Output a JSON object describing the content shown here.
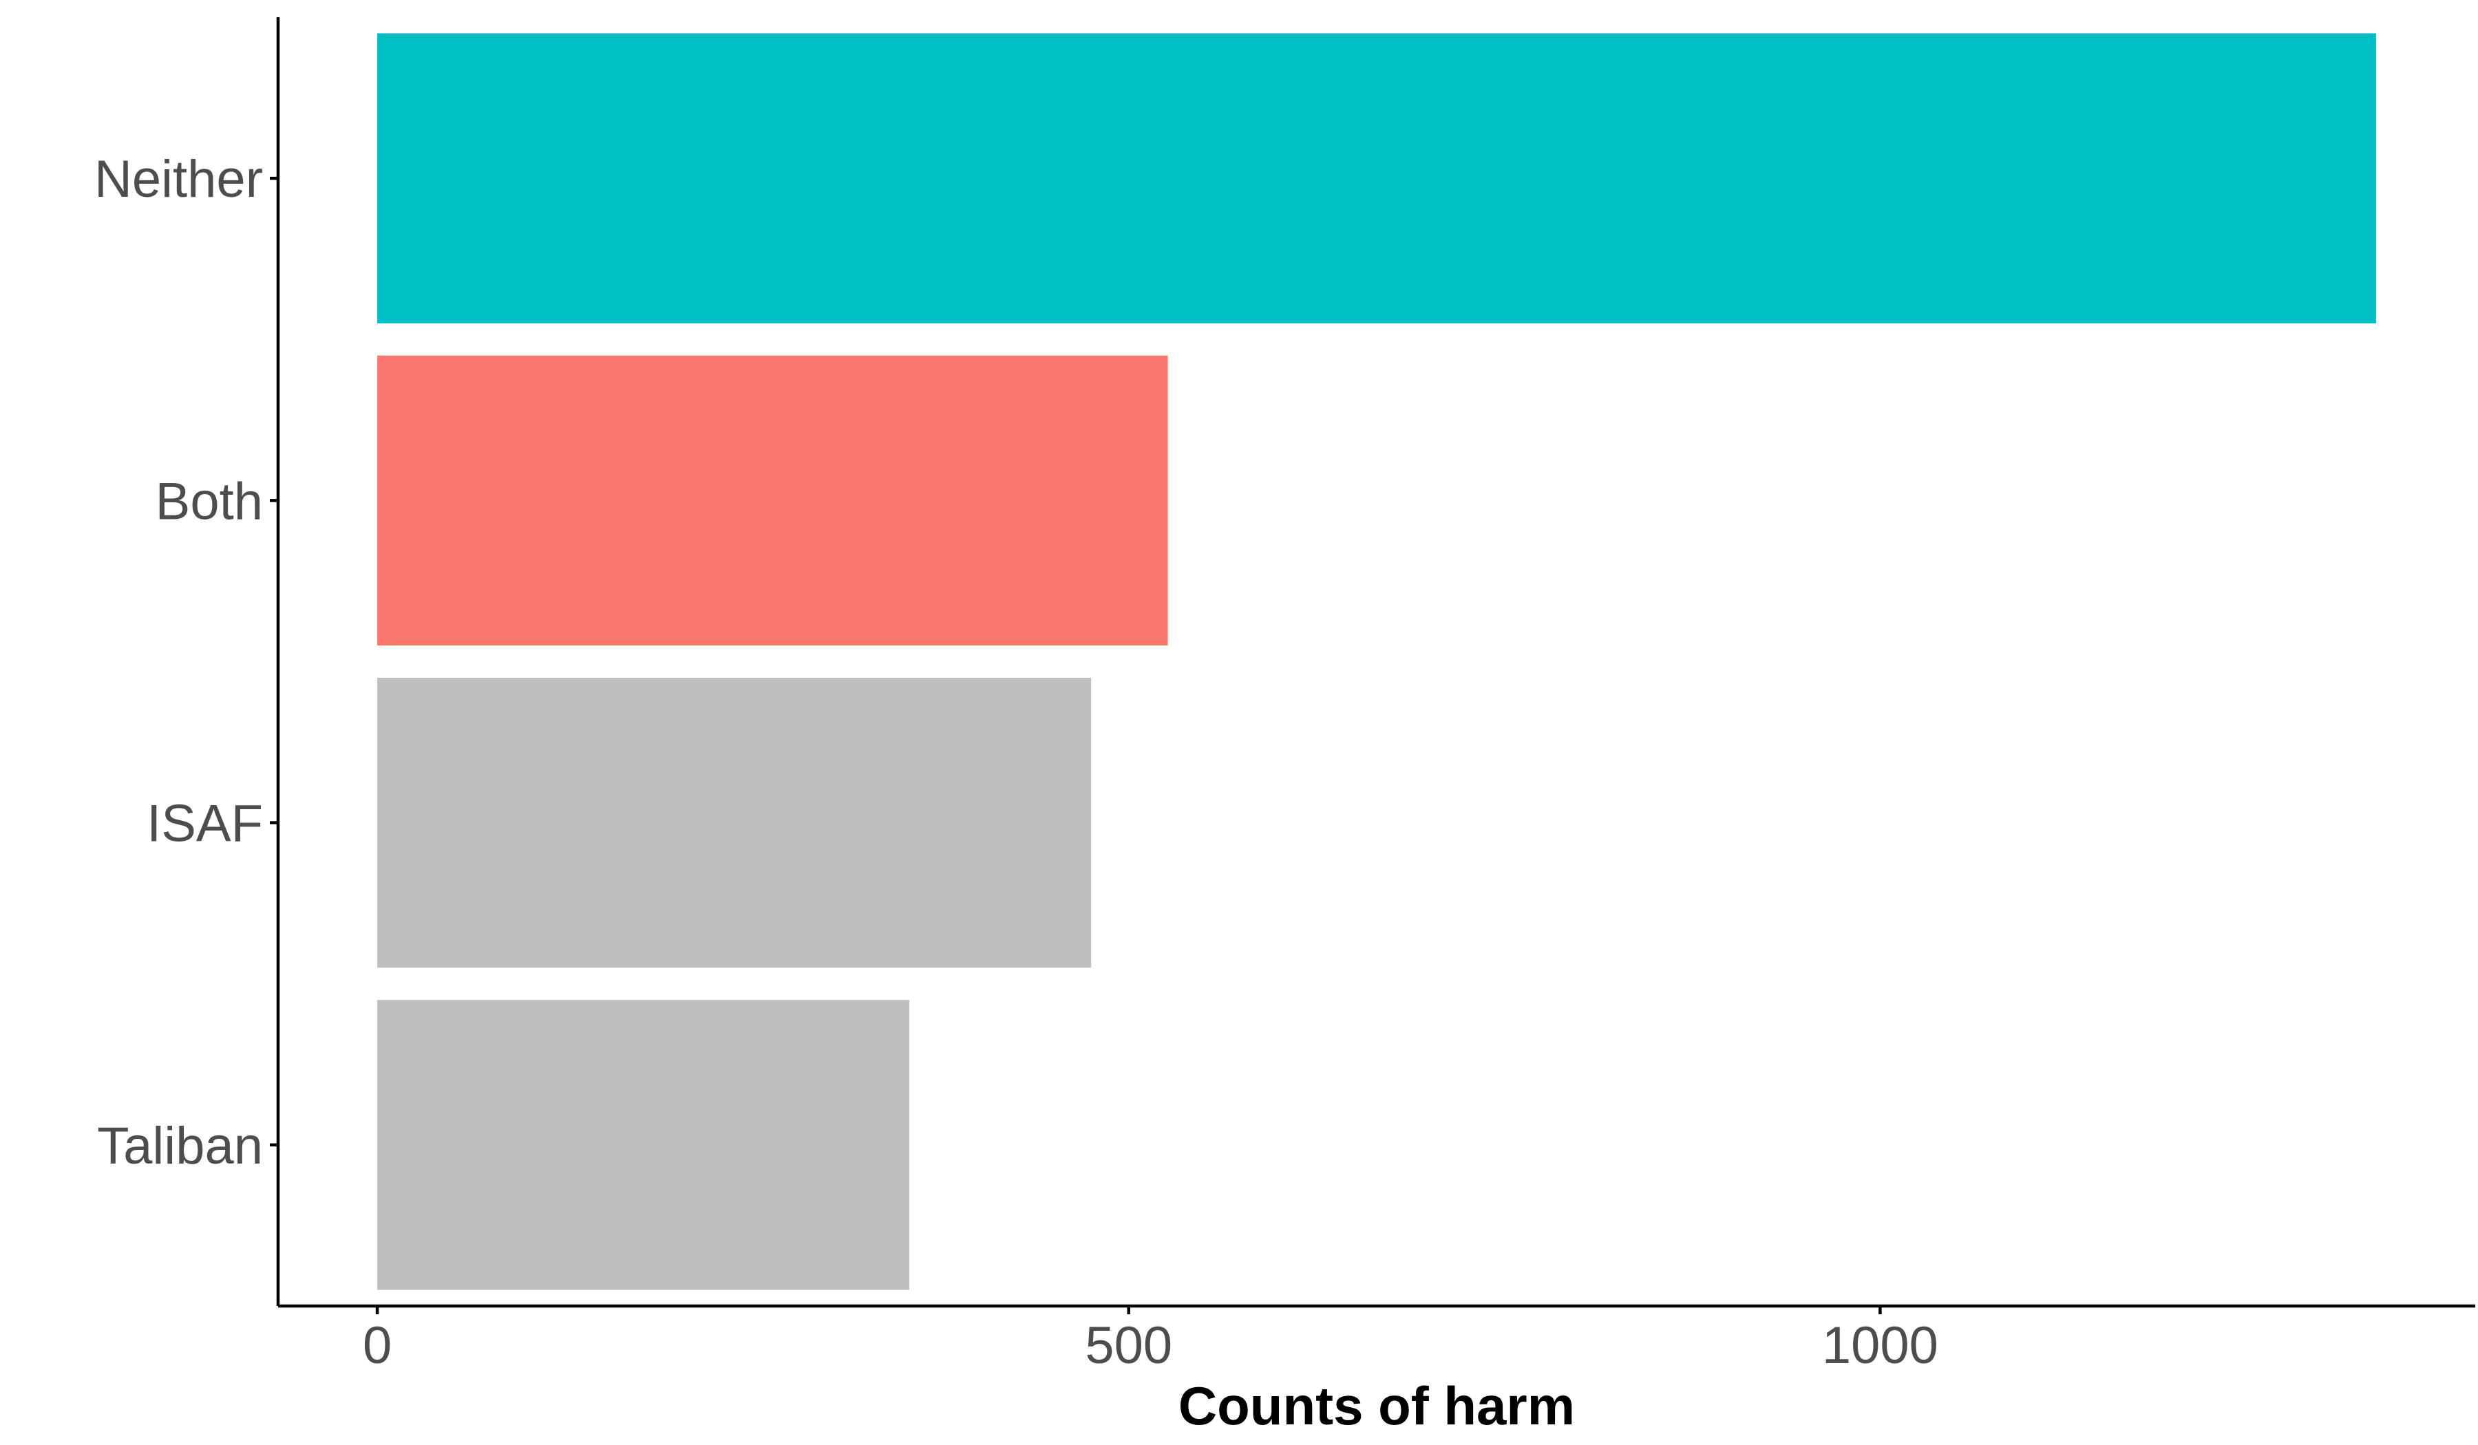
{
  "chart_data": {
    "type": "bar",
    "orientation": "horizontal",
    "categories": [
      "Neither",
      "Both",
      "ISAF",
      "Taliban"
    ],
    "values": [
      1330,
      526,
      475,
      354
    ],
    "colors": [
      "#00BFC4",
      "#F8766D",
      "#BEBEBE",
      "#BEBEBE"
    ],
    "title": "",
    "xlabel": "Counts of harm",
    "ylabel": "",
    "xlim": [
      -66,
      1396
    ],
    "xticks": [
      0,
      500,
      1000
    ],
    "xtick_labels": [
      "0",
      "500",
      "1000"
    ],
    "grid": false,
    "legend": "none"
  }
}
